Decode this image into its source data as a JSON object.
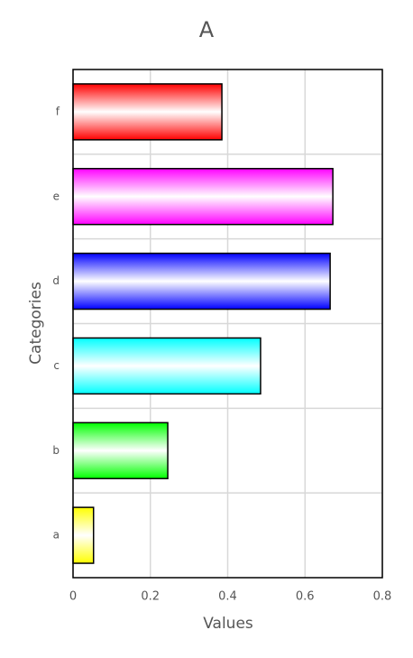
{
  "chart_data": {
    "type": "barh",
    "title": "A",
    "xlabel": "Values",
    "ylabel": "Categories",
    "categories": [
      "a",
      "b",
      "c",
      "d",
      "e",
      "f"
    ],
    "values": [
      0.053,
      0.245,
      0.485,
      0.665,
      0.672,
      0.385
    ],
    "colors": [
      "#ffff00",
      "#00ff00",
      "#00ffff",
      "#0000ff",
      "#ff00ff",
      "#ff0000"
    ],
    "xlim": [
      0,
      0.8
    ],
    "xticks": [
      0,
      0.2,
      0.4,
      0.6,
      0.8
    ],
    "grid": true
  }
}
